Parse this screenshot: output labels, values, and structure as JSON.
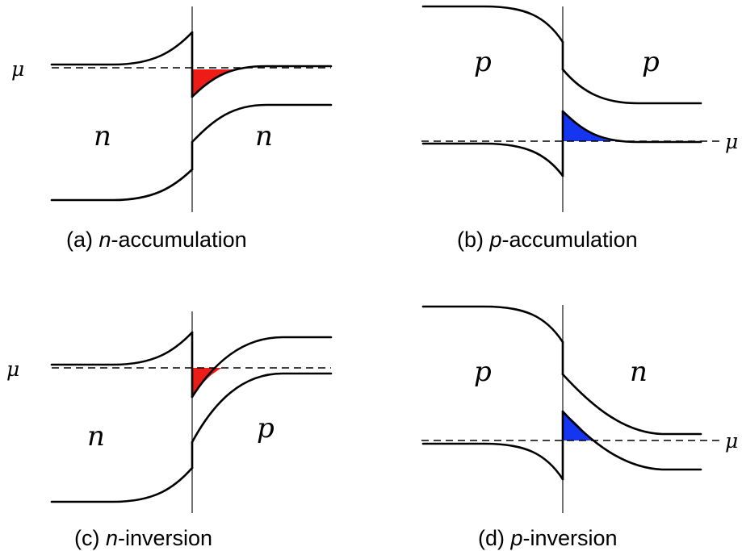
{
  "colors": {
    "electron_fill": "#ee1c16",
    "hole_fill": "#1535f0",
    "line": "#000000"
  },
  "mu_symbol": "μ",
  "panels": [
    {
      "id": "a",
      "caption_prefix": "(a) ",
      "caption_italic": "n",
      "caption_suffix": "-accumulation",
      "left_region": "n",
      "right_region": "n",
      "filled_carrier": "electrons"
    },
    {
      "id": "b",
      "caption_prefix": "(b) ",
      "caption_italic": "p",
      "caption_suffix": "-accumulation",
      "left_region": "p",
      "right_region": "p",
      "filled_carrier": "holes"
    },
    {
      "id": "c",
      "caption_prefix": "(c) ",
      "caption_italic": "n",
      "caption_suffix": "-inversion",
      "left_region": "n",
      "right_region": "p",
      "filled_carrier": "electrons"
    },
    {
      "id": "d",
      "caption_prefix": "(d) ",
      "caption_italic": "p",
      "caption_suffix": "-inversion",
      "left_region": "p",
      "right_region": "n",
      "filled_carrier": "holes"
    }
  ]
}
